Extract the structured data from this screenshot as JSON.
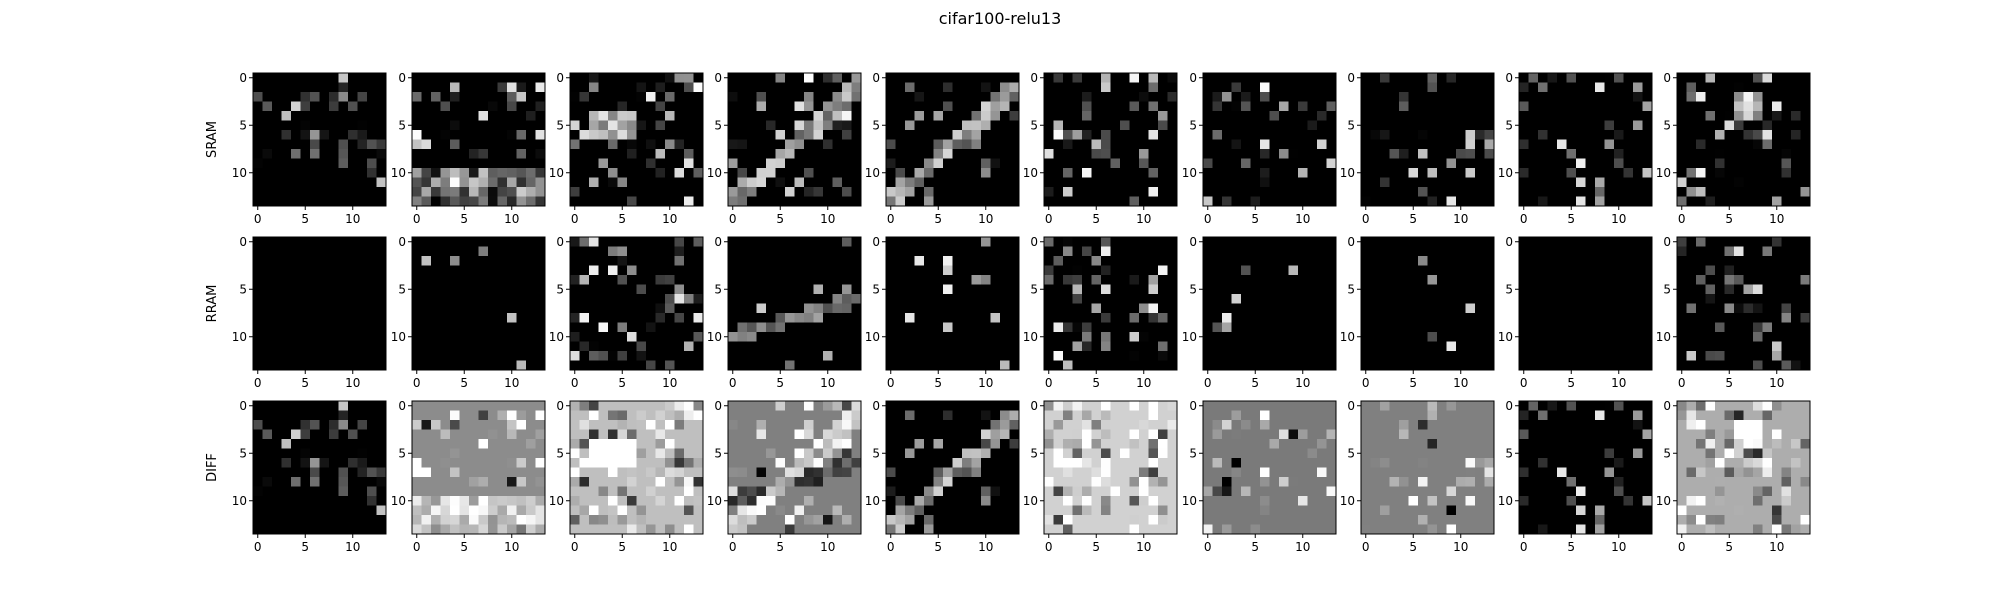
{
  "chart_data": {
    "type": "heatmap",
    "title": "cifar100-relu13",
    "rows": [
      "SRAM",
      "RRAM",
      "DIFF"
    ],
    "columns": 10,
    "grid_size": 14,
    "colormap": "gray",
    "x_ticks": [
      "0",
      "5",
      "10"
    ],
    "y_ticks": [
      "0",
      "5",
      "10"
    ],
    "x_tick_values": [
      0,
      5,
      10
    ],
    "y_tick_values": [
      0,
      5,
      10
    ],
    "cell_descriptions": "Each panel is a 14x14 grayscale activation map; pixel intensities are not labeled in the image."
  }
}
